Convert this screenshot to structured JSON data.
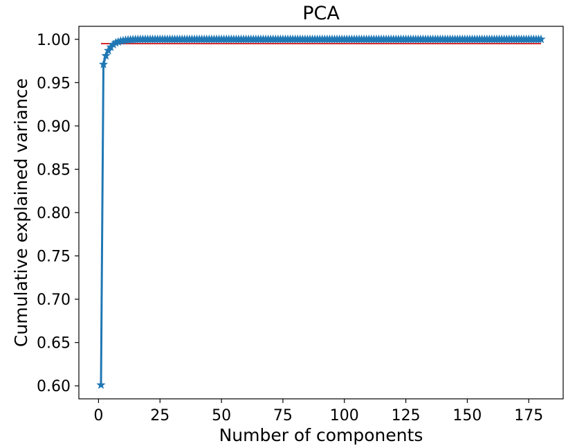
{
  "chart_data": {
    "type": "line",
    "title": "PCA",
    "xlabel": "Number of components",
    "ylabel": "Cumulative explained variance",
    "xlim": [
      -8,
      189
    ],
    "ylim": [
      0.585,
      1.015
    ],
    "x_ticks": [
      0,
      25,
      50,
      75,
      100,
      125,
      150,
      175
    ],
    "x_tick_labels": [
      "0",
      "25",
      "50",
      "75",
      "100",
      "125",
      "150",
      "175"
    ],
    "y_ticks": [
      0.6,
      0.65,
      0.7,
      0.75,
      0.8,
      0.85,
      0.9,
      0.95,
      1.0
    ],
    "y_tick_labels": [
      "0.60",
      "0.65",
      "0.70",
      "0.75",
      "0.80",
      "0.85",
      "0.90",
      "0.95",
      "1.00"
    ],
    "grid": false,
    "series": [
      {
        "color": "#1f77b4",
        "marker": "star",
        "x_start": 1,
        "x_end": 180,
        "values": [
          0.601,
          0.971,
          0.981,
          0.987,
          0.991,
          0.994,
          0.996,
          0.997,
          0.998,
          0.9985,
          0.999,
          0.9993,
          0.9995,
          0.9997,
          0.9998,
          0.9999,
          0.99995
        ],
        "plateau_value": 1.0
      }
    ],
    "reference_lines": [
      {
        "type": "horizontal",
        "y": 0.995,
        "x_range": [
          1,
          180
        ],
        "color": "#d62728"
      }
    ]
  }
}
